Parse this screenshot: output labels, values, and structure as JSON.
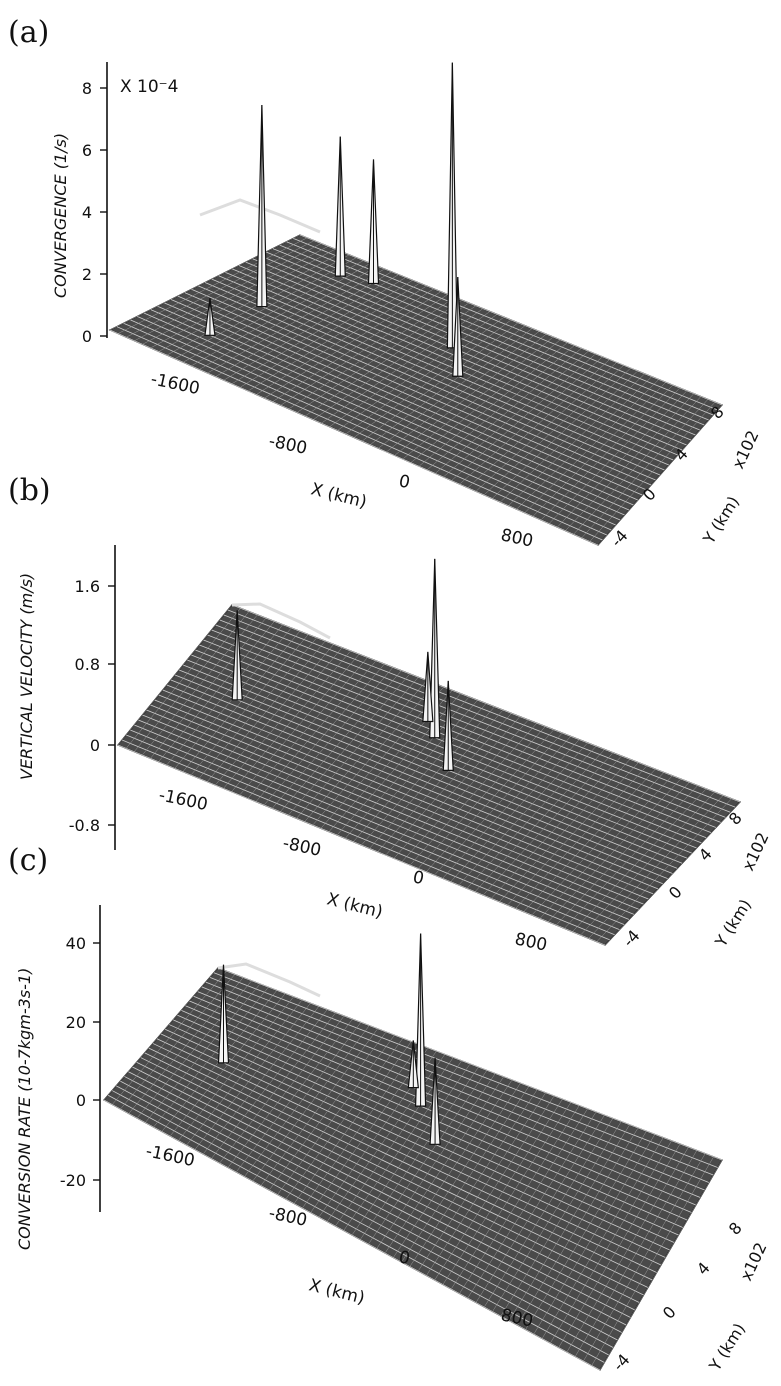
{
  "panels": [
    {
      "id": "a",
      "panel_label": "(a)",
      "zlabel": "CONVERGENCE (1/s)",
      "multiplier": "X 10⁻4",
      "zticks": [
        "0",
        "2",
        "4",
        "6",
        "8"
      ],
      "xticks": [
        "-1600",
        "-800",
        "0",
        "800"
      ],
      "yticks": [
        "-4",
        "0",
        "4",
        "8"
      ],
      "xlabel": "X (km)",
      "ylabel": "Y (km)",
      "yscale": "x102"
    },
    {
      "id": "b",
      "panel_label": "(b)",
      "zlabel": "VERTICAL VELOCITY (m/s)",
      "multiplier": "",
      "zticks": [
        "-0.8",
        "0",
        "0.8",
        "1.6"
      ],
      "xticks": [
        "-1600",
        "-800",
        "0",
        "800"
      ],
      "yticks": [
        "-4",
        "0",
        "4",
        "8"
      ],
      "xlabel": "X (km)",
      "ylabel": "Y (km)",
      "yscale": "x102"
    },
    {
      "id": "c",
      "panel_label": "(c)",
      "zlabel": "CONVERSION RATE (10-7kgm-3s-1)",
      "multiplier": "",
      "zticks": [
        "-20",
        "0",
        "20",
        "40"
      ],
      "xticks": [
        "-1600",
        "-800",
        "0",
        "800"
      ],
      "yticks": [
        "-4",
        "0",
        "4",
        "8"
      ],
      "xlabel": "X (km)",
      "ylabel": "Y (km)",
      "yscale": "x102"
    }
  ],
  "chart_data": [
    {
      "type": "surface",
      "panel": "(a)",
      "zlabel": "CONVERGENCE (1/s)",
      "zscale": "X 10-4",
      "zlim": [
        0,
        8
      ],
      "x_ticks": [
        -1600,
        -800,
        0,
        800
      ],
      "y_ticks": [
        -4,
        0,
        4,
        8
      ],
      "xlabel": "X (km)",
      "ylabel": "Y (km) x102",
      "peaks": [
        {
          "x": -1600,
          "y": 2,
          "z": 6.5
        },
        {
          "x": -1500,
          "y": 7,
          "z": 4.5
        },
        {
          "x": -1300,
          "y": 7.5,
          "z": 4.0
        },
        {
          "x": -500,
          "y": 5,
          "z": 9.2
        },
        {
          "x": -300,
          "y": 3,
          "z": 3.2
        },
        {
          "x": -1600,
          "y": -2,
          "z": 1.2
        }
      ]
    },
    {
      "type": "surface",
      "panel": "(b)",
      "zlabel": "VERTICAL VELOCITY (m/s)",
      "zlim": [
        -0.8,
        1.6
      ],
      "x_ticks": [
        -1600,
        -800,
        0,
        800
      ],
      "y_ticks": [
        -4,
        0,
        4,
        8
      ],
      "xlabel": "X (km)",
      "ylabel": "Y (km) x102",
      "peaks": [
        {
          "x": -1600,
          "y": 2,
          "z": 0.9
        },
        {
          "x": -500,
          "y": 5,
          "z": 1.8
        },
        {
          "x": -300,
          "y": 3,
          "z": 0.9
        },
        {
          "x": -600,
          "y": 6,
          "z": 0.7
        }
      ]
    },
    {
      "type": "surface",
      "panel": "(c)",
      "zlabel": "CONVERSION RATE (10-7kgm-3s-1)",
      "zlim": [
        -20,
        40
      ],
      "x_ticks": [
        -1600,
        -800,
        0,
        800
      ],
      "y_ticks": [
        -4,
        0,
        4,
        8
      ],
      "xlabel": "X (km)",
      "ylabel": "Y (km) x102",
      "peaks": [
        {
          "x": -1600,
          "y": 2,
          "z": 25
        },
        {
          "x": -500,
          "y": 5,
          "z": 44
        },
        {
          "x": -300,
          "y": 3,
          "z": 22
        },
        {
          "x": -600,
          "y": 6,
          "z": 12
        }
      ]
    }
  ]
}
